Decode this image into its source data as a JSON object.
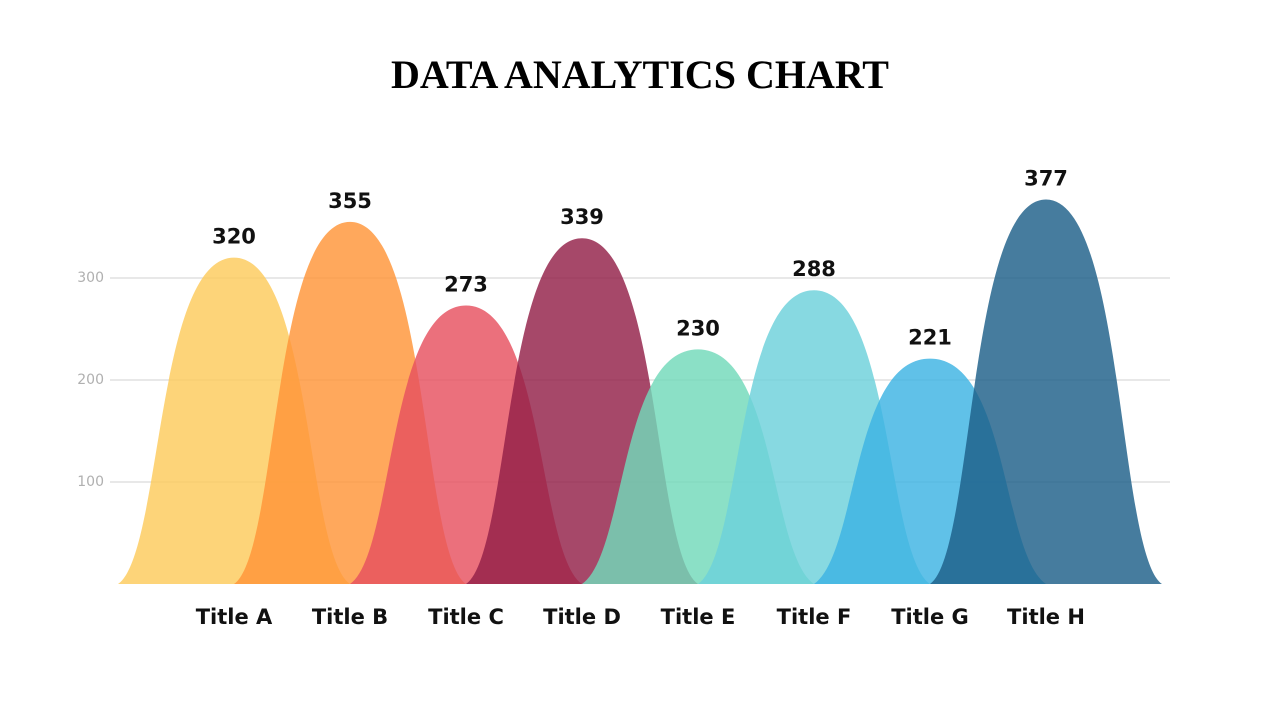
{
  "chart_data": {
    "type": "bell",
    "title": "DATA ANALYTICS CHART",
    "categories": [
      "Title A",
      "Title B",
      "Title C",
      "Title D",
      "Title E",
      "Title F",
      "Title G",
      "Title H"
    ],
    "values": [
      320,
      355,
      273,
      339,
      230,
      288,
      221,
      377
    ],
    "colors": [
      "#fdca5c",
      "#ff9538",
      "#e6505f",
      "#922048",
      "#72d9ba",
      "#6dd1da",
      "#3db3e3",
      "#1d5f89"
    ],
    "ylim": [
      0,
      400
    ],
    "yticks": [
      100,
      200,
      300
    ],
    "grid": true
  }
}
